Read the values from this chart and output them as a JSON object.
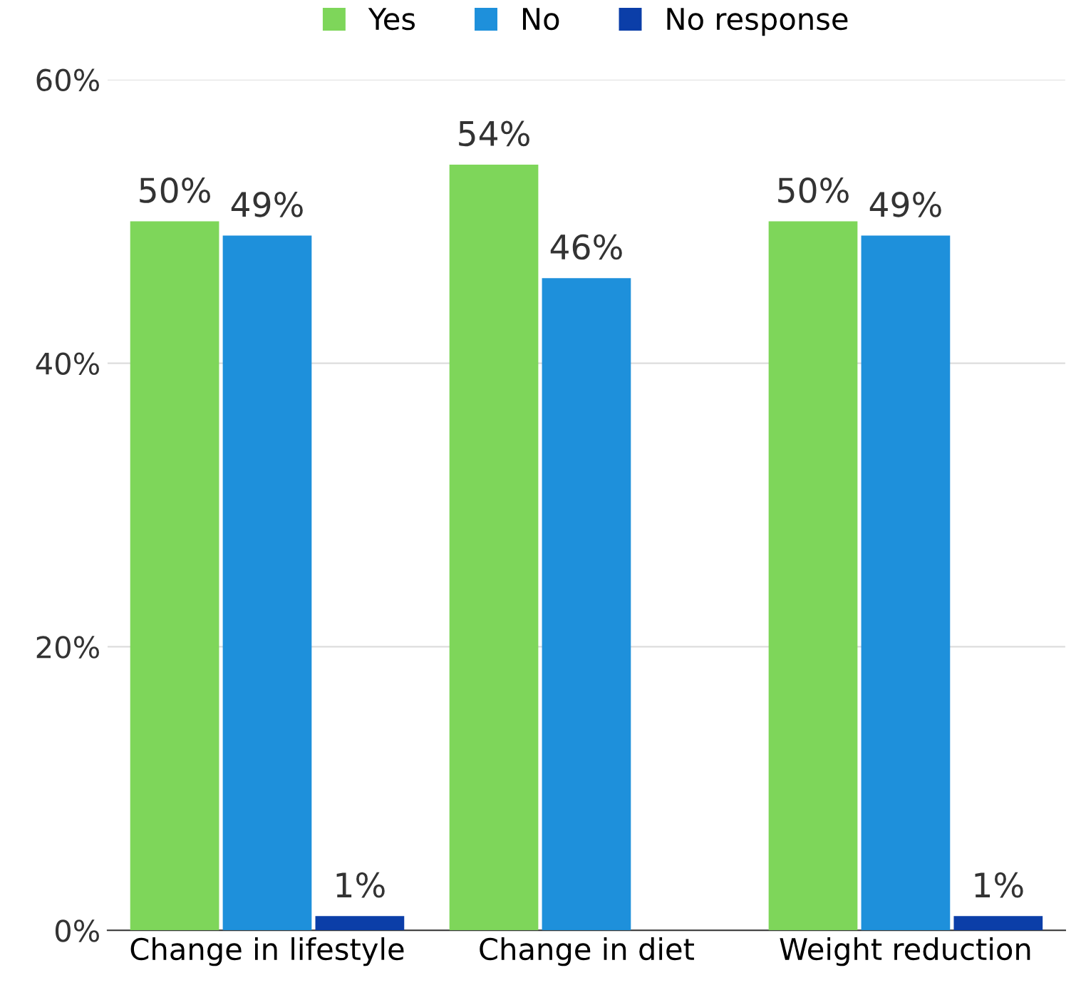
{
  "chart_data": {
    "type": "bar",
    "categories": [
      "Change in lifestyle",
      "Change in diet",
      "Weight reduction"
    ],
    "series": [
      {
        "name": "Yes",
        "color": "#7ed65a",
        "values": [
          50,
          54,
          50
        ],
        "value_labels": [
          "50%",
          "54%",
          "50%"
        ]
      },
      {
        "name": "No",
        "color": "#1e90db",
        "values": [
          49,
          46,
          49
        ],
        "value_labels": [
          "49%",
          "46%",
          "49%"
        ]
      },
      {
        "name": "No response",
        "color": "#0b3ea8",
        "values": [
          1,
          null,
          1
        ],
        "value_labels": [
          "1%",
          null,
          "1%"
        ]
      }
    ],
    "ylim": [
      0,
      60
    ],
    "yticks": [
      {
        "value": 0,
        "label": "0%"
      },
      {
        "value": 20,
        "label": "20%"
      },
      {
        "value": 40,
        "label": "40%"
      },
      {
        "value": 60,
        "label": "60%"
      }
    ],
    "grid": "y",
    "legend": "top"
  }
}
